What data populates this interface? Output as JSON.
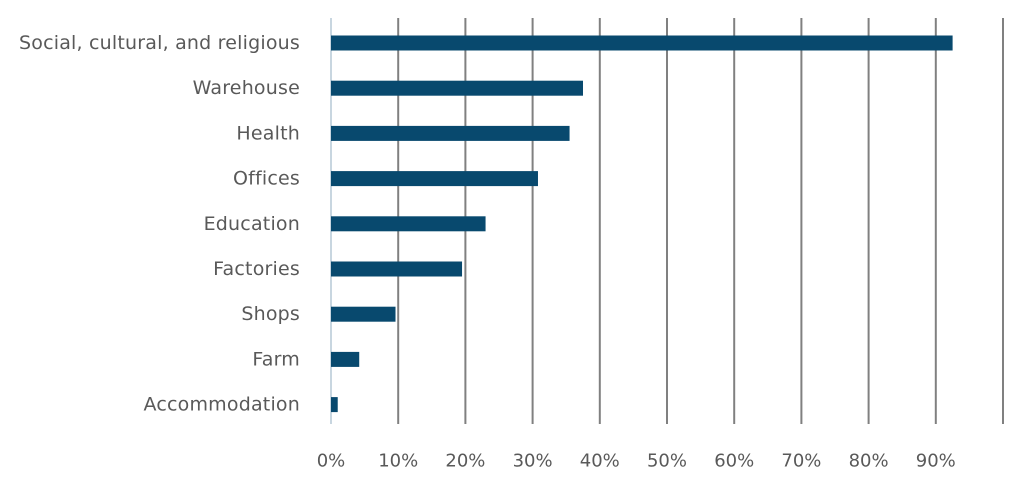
{
  "chart_data": {
    "type": "bar",
    "orientation": "horizontal",
    "categories": [
      "Social, cultural, and religious",
      "Warehouse",
      "Health",
      "Offices",
      "Education",
      "Factories",
      "Shops",
      "Farm",
      "Accommodation"
    ],
    "values": [
      92.5,
      37.5,
      35.5,
      30.8,
      23.0,
      19.5,
      9.6,
      4.2,
      1.0
    ],
    "value_unit": "%",
    "xlim": [
      0,
      100
    ],
    "x_ticks": [
      0,
      10,
      20,
      30,
      40,
      50,
      60,
      70,
      80,
      90
    ],
    "x_tick_labels": [
      "0%",
      "10%",
      "20%",
      "30%",
      "40%",
      "50%",
      "60%",
      "70%",
      "80%",
      "90%"
    ],
    "title": "",
    "xlabel": "",
    "ylabel": "",
    "grid": true,
    "legend": "none",
    "bar_color": "#08496e",
    "gridline_color": "#808080",
    "label_color": "#595959"
  }
}
